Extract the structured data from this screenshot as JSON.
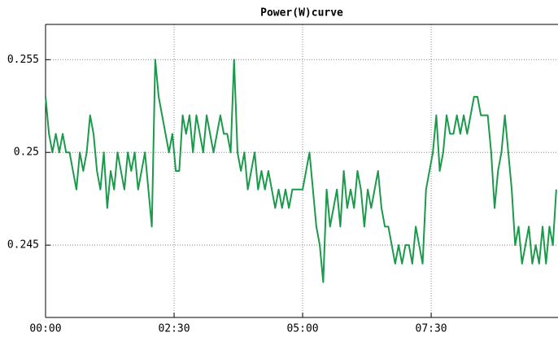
{
  "chart_data": {
    "type": "line",
    "title": "Power(W)curve",
    "x": [
      0,
      4,
      8,
      12,
      16,
      20,
      24,
      28,
      32,
      36,
      40,
      44,
      48,
      52,
      56,
      60,
      64,
      68,
      72,
      76,
      80,
      84,
      88,
      92,
      96,
      100,
      104,
      108,
      112,
      116,
      120,
      124,
      128,
      132,
      136,
      140,
      144,
      148,
      152,
      156,
      160,
      164,
      168,
      172,
      176,
      180,
      184,
      188,
      192,
      196,
      200,
      204,
      208,
      212,
      216,
      220,
      224,
      228,
      232,
      236,
      240,
      244,
      248,
      252,
      256,
      260,
      264,
      268,
      272,
      276,
      280,
      284,
      288,
      292,
      296,
      300,
      304,
      308,
      312,
      316,
      320,
      324,
      328,
      332,
      336,
      340,
      344,
      348,
      352,
      356,
      360,
      364,
      368,
      372,
      376,
      380,
      384,
      388,
      392,
      396,
      400,
      404,
      408,
      412,
      416,
      420,
      424,
      428,
      432,
      436,
      440,
      444,
      448,
      452,
      456,
      460,
      464,
      468,
      472,
      476,
      480,
      484,
      488,
      492,
      496,
      500,
      504,
      508,
      512,
      516,
      520,
      524,
      528,
      532,
      536,
      540,
      544,
      548,
      552,
      556,
      560,
      564,
      568,
      572,
      576,
      580,
      584,
      588,
      592,
      596
    ],
    "series": [
      {
        "name": "Power",
        "color": "#1a9a4a",
        "values": [
          0.253,
          0.251,
          0.25,
          0.251,
          0.25,
          0.251,
          0.25,
          0.25,
          0.249,
          0.248,
          0.25,
          0.249,
          0.25,
          0.252,
          0.251,
          0.249,
          0.248,
          0.25,
          0.247,
          0.249,
          0.248,
          0.25,
          0.249,
          0.248,
          0.25,
          0.249,
          0.25,
          0.248,
          0.249,
          0.25,
          0.248,
          0.246,
          0.255,
          0.253,
          0.252,
          0.251,
          0.25,
          0.251,
          0.249,
          0.249,
          0.252,
          0.251,
          0.252,
          0.25,
          0.252,
          0.251,
          0.25,
          0.252,
          0.251,
          0.25,
          0.251,
          0.252,
          0.251,
          0.251,
          0.25,
          0.255,
          0.25,
          0.249,
          0.25,
          0.248,
          0.249,
          0.25,
          0.248,
          0.249,
          0.248,
          0.249,
          0.248,
          0.247,
          0.248,
          0.247,
          0.248,
          0.247,
          0.248,
          0.248,
          0.248,
          0.248,
          0.249,
          0.25,
          0.248,
          0.246,
          0.245,
          0.243,
          0.248,
          0.246,
          0.247,
          0.248,
          0.246,
          0.249,
          0.247,
          0.248,
          0.247,
          0.249,
          0.248,
          0.246,
          0.248,
          0.247,
          0.248,
          0.249,
          0.247,
          0.246,
          0.246,
          0.245,
          0.244,
          0.245,
          0.244,
          0.245,
          0.245,
          0.244,
          0.246,
          0.245,
          0.244,
          0.248,
          0.249,
          0.25,
          0.252,
          0.249,
          0.25,
          0.252,
          0.251,
          0.251,
          0.252,
          0.251,
          0.252,
          0.251,
          0.252,
          0.253,
          0.253,
          0.252,
          0.252,
          0.252,
          0.25,
          0.247,
          0.249,
          0.25,
          0.252,
          0.25,
          0.248,
          0.245,
          0.246,
          0.244,
          0.245,
          0.246,
          0.244,
          0.245,
          0.244,
          0.246,
          0.244,
          0.246,
          0.245,
          0.248
        ]
      }
    ],
    "xlim": [
      0,
      598
    ],
    "xticks": [
      {
        "value": 0,
        "label": "00:00"
      },
      {
        "value": 150,
        "label": "02:30"
      },
      {
        "value": 300,
        "label": "05:00"
      },
      {
        "value": 450,
        "label": "07:30"
      }
    ],
    "ylim": [
      0.2411,
      0.2569
    ],
    "yticks": [
      0.245,
      0.25,
      0.255
    ],
    "grid": true
  }
}
